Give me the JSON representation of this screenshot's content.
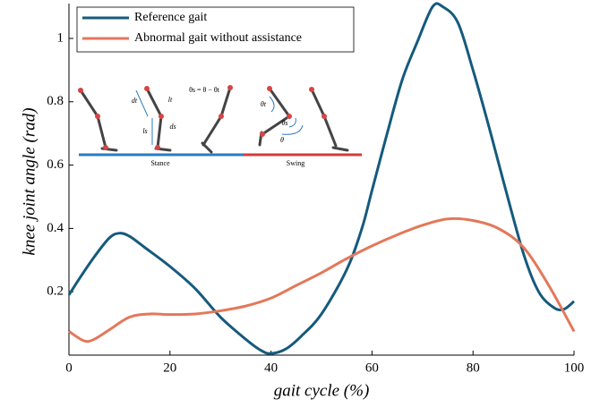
{
  "chart_data": {
    "type": "line",
    "xlabel": "gait cycle (%)",
    "ylabel": "knee joint angle (rad)",
    "xlim": [
      0,
      100
    ],
    "xticks": [
      0,
      20,
      40,
      60,
      80,
      100
    ],
    "ylim": [
      0,
      1.11
    ],
    "yticks": [
      0.2,
      0.4,
      0.6,
      0.8,
      1
    ],
    "legend": "upper left",
    "series": [
      {
        "name": "Reference gait",
        "color": "#155a7d",
        "x": [
          0,
          2,
          5,
          8,
          10,
          12,
          15,
          20,
          25,
          30,
          35,
          38,
          40,
          43,
          46,
          50,
          55,
          58,
          60,
          63,
          66,
          69,
          72,
          74,
          77,
          80,
          83,
          86,
          90,
          93,
          96,
          98,
          100
        ],
        "values": [
          0.19,
          0.24,
          0.31,
          0.37,
          0.385,
          0.375,
          0.34,
          0.28,
          0.21,
          0.12,
          0.05,
          0.015,
          0.005,
          0.02,
          0.06,
          0.13,
          0.27,
          0.4,
          0.52,
          0.7,
          0.87,
          0.99,
          1.1,
          1.1,
          1.05,
          0.9,
          0.73,
          0.55,
          0.32,
          0.2,
          0.15,
          0.145,
          0.17
        ]
      },
      {
        "name": "Abnormal gait without assistance",
        "color": "#e3785a",
        "x": [
          0,
          3,
          5,
          8,
          12,
          16,
          20,
          25,
          30,
          35,
          40,
          45,
          50,
          55,
          60,
          65,
          70,
          75,
          80,
          85,
          90,
          95,
          100
        ],
        "values": [
          0.075,
          0.045,
          0.05,
          0.08,
          0.12,
          0.13,
          0.128,
          0.13,
          0.14,
          0.155,
          0.18,
          0.22,
          0.26,
          0.305,
          0.345,
          0.38,
          0.41,
          0.43,
          0.425,
          0.4,
          0.34,
          0.22,
          0.075
        ]
      }
    ],
    "inset": {
      "stance": "Stance",
      "swing": "Swing",
      "equation": "θs = θ − θt",
      "labels": [
        "dt",
        "lt",
        "ds",
        "ls",
        "θt",
        "θs",
        "θ"
      ]
    }
  }
}
